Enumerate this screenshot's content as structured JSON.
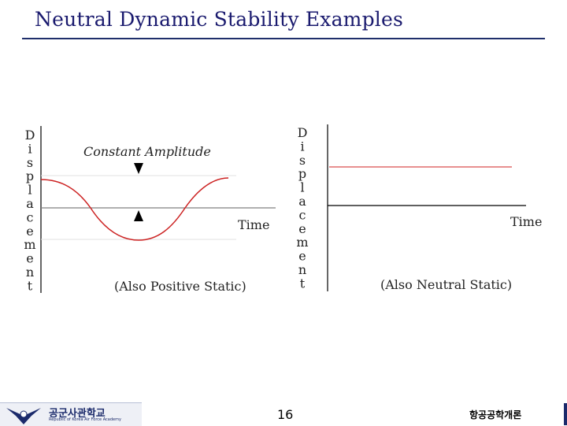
{
  "slide": {
    "title": "Neutral Dynamic Stability Examples"
  },
  "left_panel": {
    "y_axis_letters": [
      "D",
      "i",
      "s",
      "p",
      "l",
      "a",
      "c",
      "e",
      "m",
      "e",
      "n",
      "t"
    ],
    "annotation": "Constant Amplitude",
    "x_axis_label": "Time",
    "caption": "(Also Positive Static)"
  },
  "right_panel": {
    "y_axis_letters": [
      "D",
      "i",
      "s",
      "p",
      "l",
      "a",
      "c",
      "e",
      "m",
      "e",
      "n",
      "t"
    ],
    "x_axis_label": "Time",
    "caption": "(Also Neutral Static)"
  },
  "footer": {
    "logo_text": "공군사관학교",
    "logo_subtext": "Republic of Korea Air Force Academy",
    "page_number": "16",
    "course_name": "항공공학개론"
  },
  "colors": {
    "title": "#1a1a6e",
    "rule": "#1f2f6b",
    "curve": "#cc2222",
    "constant_line": "#e89090",
    "axis": "#000000"
  }
}
